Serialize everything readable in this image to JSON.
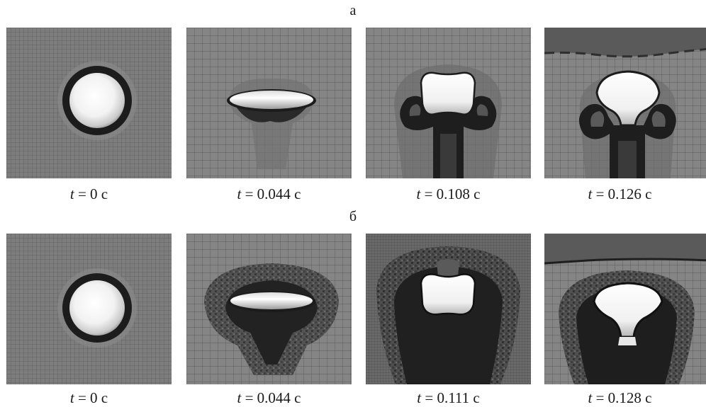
{
  "figure": {
    "rows": [
      {
        "label": "а",
        "panels": [
          {
            "time_var": "t",
            "time_text": " = 0 с"
          },
          {
            "time_var": "t",
            "time_text": " = 0.044 с"
          },
          {
            "time_var": "t",
            "time_text": " = 0.108 с"
          },
          {
            "time_var": "t",
            "time_text": " = 0.126 с"
          }
        ]
      },
      {
        "label": "б",
        "panels": [
          {
            "time_var": "t",
            "time_text": " = 0 с"
          },
          {
            "time_var": "t",
            "time_text": " = 0.044 с"
          },
          {
            "time_var": "t",
            "time_text": " = 0.111 с"
          },
          {
            "time_var": "t",
            "time_text": " = 0.128 с"
          }
        ]
      }
    ]
  },
  "colors": {
    "background_gray": "#7d7d7d",
    "grid_line": "#5a5a5a",
    "bubble_dark": "#1c1c1c",
    "bubble_light": "#ffffff",
    "interface_dark": "#3a3a3a"
  }
}
